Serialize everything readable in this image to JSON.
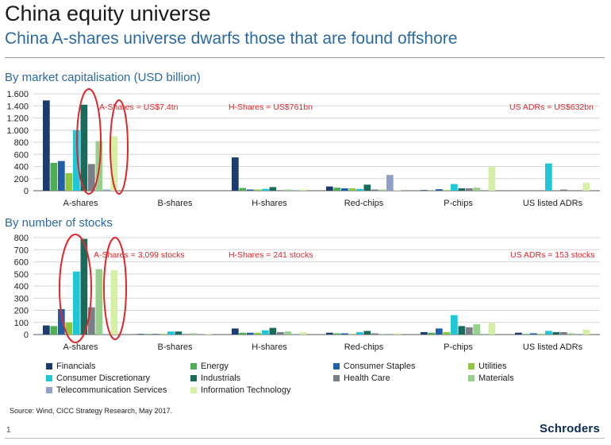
{
  "title": "China equity universe",
  "subtitle": "China A-shares universe dwarfs those that are found offshore",
  "legend_items": [
    {
      "name": "Financials",
      "color": "#1c3c6e"
    },
    {
      "name": "Energy",
      "color": "#4caf50"
    },
    {
      "name": "Consumer Staples",
      "color": "#1f5fa8"
    },
    {
      "name": "Utilities",
      "color": "#8dc63f"
    },
    {
      "name": "Consumer Discretionary",
      "color": "#1fc6d8"
    },
    {
      "name": "Industrials",
      "color": "#1b6b5c"
    },
    {
      "name": "Health Care",
      "color": "#7a7f87"
    },
    {
      "name": "Materials",
      "color": "#97cf8c"
    },
    {
      "name": "Telecommunication Services",
      "color": "#8ea2c6"
    },
    {
      "name": "Information Technology",
      "color": "#d3f0a4"
    }
  ],
  "chart_data": [
    {
      "type": "bar",
      "title": "By market capitalisation (USD billion)",
      "categories": [
        "A-shares",
        "B-shares",
        "H-shares",
        "Red-chips",
        "P-chips",
        "US listed ADRs"
      ],
      "ylim": [
        0,
        1600
      ],
      "yticks": [
        0,
        200,
        400,
        600,
        800,
        1000,
        1200,
        1400,
        1600
      ],
      "ytick_labels": [
        "0",
        "200",
        "400",
        "600",
        "800",
        "1.000",
        "1.200",
        "1.400",
        "1.600"
      ],
      "grid": true,
      "annotations": [
        "A-Shares = US$7.4tn",
        "H-Shares = US$761bn",
        "US ADRs = US$632bn"
      ],
      "series": [
        {
          "name": "Financials",
          "values": [
            1490,
            0,
            550,
            70,
            10,
            0
          ]
        },
        {
          "name": "Energy",
          "values": [
            460,
            0,
            45,
            50,
            5,
            0
          ]
        },
        {
          "name": "Consumer Staples",
          "values": [
            490,
            0,
            20,
            40,
            25,
            0
          ]
        },
        {
          "name": "Utilities",
          "values": [
            290,
            0,
            20,
            40,
            10,
            0
          ]
        },
        {
          "name": "Consumer Discretionary",
          "values": [
            1000,
            0,
            30,
            30,
            110,
            450
          ]
        },
        {
          "name": "Industrials",
          "values": [
            1420,
            0,
            60,
            100,
            40,
            0
          ]
        },
        {
          "name": "Health Care",
          "values": [
            440,
            0,
            10,
            20,
            40,
            20
          ]
        },
        {
          "name": "Materials",
          "values": [
            820,
            0,
            20,
            20,
            50,
            0
          ]
        },
        {
          "name": "Telecommunication Services",
          "values": [
            20,
            0,
            10,
            260,
            0,
            0
          ]
        },
        {
          "name": "Information Technology",
          "values": [
            900,
            0,
            20,
            10,
            400,
            130
          ]
        }
      ]
    },
    {
      "type": "bar",
      "title": "By number of stocks",
      "categories": [
        "A-shares",
        "B-shares",
        "H-shares",
        "Red-chips",
        "P-chips",
        "US listed ADRs"
      ],
      "ylim": [
        0,
        800
      ],
      "yticks": [
        0,
        100,
        200,
        300,
        400,
        500,
        600,
        700,
        800
      ],
      "ytick_labels": [
        "0",
        "100",
        "200",
        "300",
        "400",
        "500",
        "600",
        "700",
        "800"
      ],
      "grid": true,
      "annotations": [
        "A-Shares = 3,099 stocks",
        "H-Shares = 241 stocks",
        "US ADRs = 153 stocks"
      ],
      "series": [
        {
          "name": "Financials",
          "values": [
            75,
            5,
            50,
            15,
            20,
            15
          ]
        },
        {
          "name": "Energy",
          "values": [
            70,
            5,
            15,
            10,
            15,
            5
          ]
        },
        {
          "name": "Consumer Staples",
          "values": [
            210,
            5,
            15,
            10,
            50,
            10
          ]
        },
        {
          "name": "Utilities",
          "values": [
            100,
            5,
            15,
            5,
            20,
            5
          ]
        },
        {
          "name": "Consumer Discretionary",
          "values": [
            520,
            25,
            35,
            20,
            160,
            30
          ]
        },
        {
          "name": "Industrials",
          "values": [
            790,
            25,
            55,
            30,
            70,
            20
          ]
        },
        {
          "name": "Health Care",
          "values": [
            225,
            5,
            20,
            10,
            60,
            20
          ]
        },
        {
          "name": "Materials",
          "values": [
            540,
            10,
            25,
            5,
            85,
            10
          ]
        },
        {
          "name": "Telecommunication Services",
          "values": [
            5,
            5,
            5,
            5,
            5,
            5
          ]
        },
        {
          "name": "Information Technology",
          "values": [
            530,
            5,
            20,
            10,
            95,
            40
          ]
        }
      ]
    }
  ],
  "source": "Source: Wind, CICC Strategy Research, May 2017.",
  "page_number": "1",
  "brand": "Schroders"
}
